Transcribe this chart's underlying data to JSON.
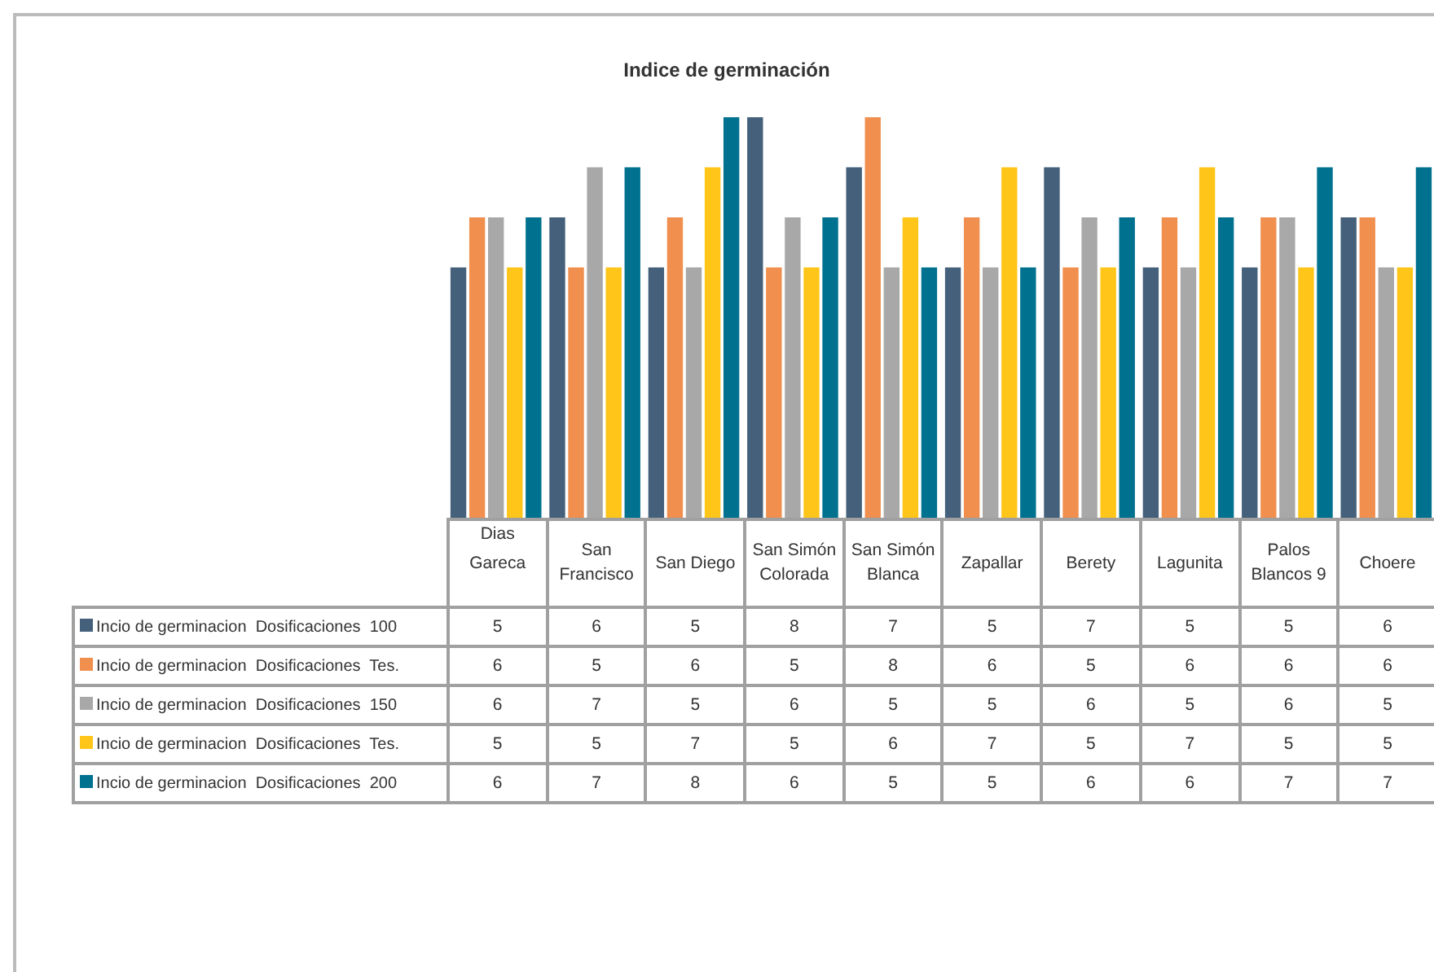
{
  "chart_data": {
    "type": "bar",
    "title": "Indice de germinación",
    "xlabel": "Dias",
    "categories": [
      "Gareca",
      "San Francisco",
      "San Diego",
      "San Simón Colorada",
      "San Simón Blanca",
      "Zapallar",
      "Berety",
      "Lagunita",
      "Palos Blancos 9",
      "Choere"
    ],
    "series": [
      {
        "name": "Incio de germinacion  Dosificaciones  100",
        "color": "#44607a",
        "values": [
          5,
          6,
          5,
          8,
          7,
          5,
          7,
          5,
          5,
          6
        ]
      },
      {
        "name": "Incio de germinacion  Dosificaciones  Tes.",
        "color": "#f08f4e",
        "values": [
          6,
          5,
          6,
          5,
          8,
          6,
          5,
          6,
          6,
          6
        ]
      },
      {
        "name": "Incio de germinacion  Dosificaciones  150",
        "color": "#a8a8a8",
        "values": [
          6,
          7,
          5,
          6,
          5,
          5,
          6,
          5,
          6,
          5
        ]
      },
      {
        "name": "Incio de germinacion  Dosificaciones  Tes.",
        "color": "#ffc519",
        "values": [
          5,
          5,
          7,
          5,
          6,
          7,
          5,
          7,
          5,
          5
        ]
      },
      {
        "name": "Incio de germinacion  Dosificaciones  200",
        "color": "#00718f",
        "values": [
          6,
          7,
          8,
          6,
          5,
          5,
          6,
          6,
          7,
          7
        ]
      }
    ],
    "data_labels": true,
    "legend": "bottom"
  }
}
